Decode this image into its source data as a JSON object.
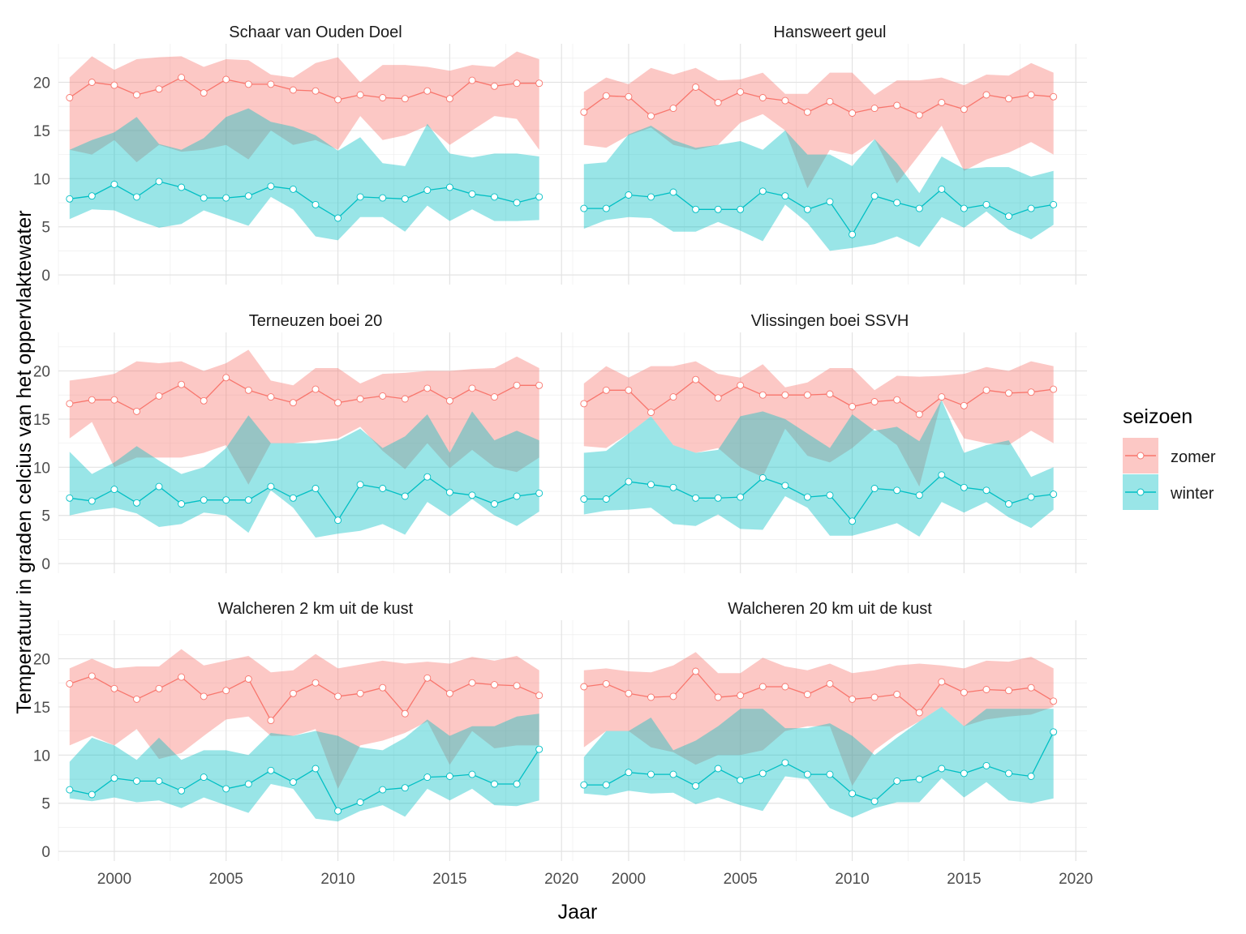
{
  "chart_data": {
    "type": "line",
    "xlabel": "Jaar",
    "ylabel": "Temperatuur in graden celcius van het oppervlaktewater",
    "xlim": [
      1997.5,
      2020.5
    ],
    "ylim": [
      -1,
      24
    ],
    "x_ticks": [
      2000,
      2005,
      2010,
      2015,
      2020
    ],
    "y_ticks": [
      0,
      5,
      10,
      15,
      20
    ],
    "grid": true,
    "legend": {
      "title": "seizoen",
      "position": "right",
      "entries": [
        {
          "label": "zomer",
          "color": "#F8766D",
          "fill": "#F8766D"
        },
        {
          "label": "winter",
          "color": "#00BFC4",
          "fill": "#00BFC4"
        }
      ]
    },
    "x": [
      1998,
      1999,
      2000,
      2001,
      2002,
      2003,
      2004,
      2005,
      2006,
      2007,
      2008,
      2009,
      2010,
      2011,
      2012,
      2013,
      2014,
      2015,
      2016,
      2017,
      2018,
      2019
    ],
    "panels": [
      {
        "title": "Schaar van Ouden Doel",
        "zomer": {
          "mean": [
            18.4,
            20.0,
            19.7,
            18.7,
            19.3,
            20.5,
            18.9,
            20.3,
            19.8,
            19.8,
            19.2,
            19.1,
            18.2,
            18.7,
            18.4,
            18.3,
            19.1,
            18.3,
            20.2,
            19.6,
            19.9,
            19.9
          ],
          "lower": [
            13.0,
            12.5,
            14.0,
            11.7,
            13.5,
            12.8,
            13.0,
            13.5,
            12.0,
            15.0,
            13.5,
            14.0,
            13.0,
            16.5,
            14.0,
            14.5,
            15.5,
            13.5,
            15.0,
            16.5,
            16.2,
            13.0
          ],
          "upper": [
            20.5,
            22.7,
            21.3,
            22.4,
            22.6,
            22.7,
            21.6,
            22.4,
            22.3,
            20.8,
            20.5,
            22.0,
            22.6,
            20.0,
            21.8,
            21.8,
            21.6,
            21.2,
            21.8,
            21.6,
            23.2,
            22.4
          ]
        },
        "winter": {
          "mean": [
            7.9,
            8.2,
            9.4,
            8.1,
            9.7,
            9.1,
            8.0,
            8.0,
            8.2,
            9.2,
            8.9,
            7.3,
            5.9,
            8.1,
            8.0,
            7.9,
            8.8,
            9.1,
            8.4,
            8.1,
            7.5,
            8.1
          ],
          "lower": [
            5.8,
            6.8,
            6.7,
            5.7,
            4.9,
            5.3,
            6.7,
            5.9,
            5.1,
            8.1,
            6.8,
            4.0,
            3.6,
            6.0,
            6.0,
            4.5,
            7.2,
            5.6,
            6.8,
            5.6,
            5.6,
            5.7
          ],
          "upper": [
            13.0,
            14.0,
            14.8,
            16.4,
            13.6,
            13.0,
            14.2,
            16.4,
            17.3,
            15.9,
            15.4,
            14.5,
            12.9,
            14.3,
            11.6,
            11.3,
            15.7,
            12.6,
            12.2,
            12.6,
            12.6,
            12.3
          ]
        }
      },
      {
        "title": "Hansweert geul",
        "zomer": {
          "mean": [
            16.9,
            18.6,
            18.5,
            16.5,
            17.3,
            19.5,
            17.9,
            19.0,
            18.4,
            18.1,
            16.9,
            18.0,
            16.8,
            17.3,
            17.6,
            16.6,
            17.9,
            17.2,
            18.7,
            18.3,
            18.7,
            18.5
          ],
          "lower": [
            13.5,
            13.2,
            14.5,
            15.3,
            13.5,
            13.0,
            13.5,
            15.8,
            16.7,
            15.0,
            9.0,
            13.0,
            12.5,
            14.1,
            9.5,
            12.5,
            15.5,
            10.8,
            12.0,
            12.7,
            13.8,
            12.5
          ],
          "upper": [
            19.0,
            20.5,
            19.8,
            21.5,
            20.8,
            21.5,
            20.2,
            20.3,
            21.0,
            18.8,
            18.8,
            21.0,
            21.0,
            18.7,
            20.2,
            20.2,
            20.5,
            19.7,
            20.8,
            20.7,
            22.0,
            21.0
          ]
        },
        "winter": {
          "mean": [
            6.9,
            6.9,
            8.3,
            8.1,
            8.6,
            6.8,
            6.8,
            6.8,
            8.7,
            8.2,
            6.8,
            7.6,
            4.2,
            8.2,
            7.5,
            6.9,
            8.9,
            6.9,
            7.3,
            6.1,
            6.9,
            7.3
          ],
          "lower": [
            4.8,
            5.7,
            6.0,
            5.9,
            4.5,
            4.5,
            5.5,
            4.6,
            3.5,
            7.3,
            5.4,
            2.5,
            2.8,
            3.2,
            4.0,
            2.9,
            6.0,
            4.9,
            6.6,
            4.7,
            3.7,
            5.2
          ],
          "upper": [
            11.5,
            11.7,
            14.6,
            15.5,
            14.0,
            13.2,
            13.5,
            13.9,
            13.0,
            15.0,
            12.5,
            12.5,
            11.3,
            14.1,
            11.6,
            8.5,
            12.3,
            11.0,
            11.2,
            11.2,
            10.2,
            10.8
          ]
        }
      },
      {
        "title": "Terneuzen boei 20",
        "zomer": {
          "mean": [
            16.6,
            17.0,
            17.0,
            15.8,
            17.4,
            18.6,
            16.9,
            19.3,
            18.0,
            17.3,
            16.7,
            18.1,
            16.7,
            17.1,
            17.4,
            17.1,
            18.2,
            16.9,
            18.2,
            17.3,
            18.5,
            18.5
          ],
          "lower": [
            13.0,
            14.7,
            10.0,
            11.0,
            11.0,
            11.0,
            11.5,
            12.3,
            8.2,
            12.5,
            12.5,
            12.8,
            13.0,
            14.2,
            11.7,
            9.8,
            12.5,
            9.9,
            11.8,
            10.0,
            9.5,
            11.0
          ],
          "upper": [
            19.0,
            19.3,
            19.7,
            21.0,
            20.8,
            21.0,
            20.0,
            20.8,
            22.2,
            19.0,
            18.5,
            20.3,
            20.3,
            18.7,
            19.7,
            19.8,
            20.0,
            20.0,
            20.2,
            20.3,
            21.5,
            20.3
          ]
        },
        "winter": {
          "mean": [
            6.8,
            6.5,
            7.7,
            6.3,
            8.0,
            6.2,
            6.6,
            6.6,
            6.6,
            8.0,
            6.8,
            7.8,
            4.5,
            8.2,
            7.8,
            7.0,
            9.0,
            7.4,
            7.1,
            6.2,
            7.0,
            7.3
          ],
          "lower": [
            5.0,
            5.5,
            5.8,
            5.2,
            3.8,
            4.1,
            5.3,
            5.0,
            3.2,
            7.6,
            5.8,
            2.7,
            3.1,
            3.4,
            4.1,
            3.0,
            6.4,
            4.9,
            6.7,
            5.0,
            3.9,
            5.4
          ],
          "upper": [
            11.6,
            9.3,
            10.5,
            12.2,
            10.7,
            9.3,
            10.0,
            12.0,
            15.4,
            12.5,
            12.5,
            12.5,
            12.8,
            14.0,
            12.0,
            13.2,
            15.5,
            11.5,
            15.8,
            12.8,
            13.8,
            12.8
          ]
        }
      },
      {
        "title": "Vlissingen boei SSVH",
        "zomer": {
          "mean": [
            16.6,
            18.0,
            18.0,
            15.7,
            17.3,
            19.1,
            17.2,
            18.5,
            17.5,
            17.5,
            17.5,
            17.6,
            16.3,
            16.8,
            17.0,
            15.5,
            17.3,
            16.4,
            18.0,
            17.7,
            17.8,
            18.1
          ],
          "lower": [
            12.2,
            12.0,
            13.5,
            15.3,
            12.3,
            11.5,
            12.0,
            10.0,
            9.0,
            14.0,
            11.2,
            10.5,
            12.0,
            14.0,
            12.3,
            8.0,
            17.0,
            13.0,
            12.5,
            12.3,
            13.8,
            12.5
          ],
          "upper": [
            18.7,
            20.5,
            19.3,
            20.5,
            20.5,
            21.0,
            19.7,
            19.3,
            20.7,
            18.3,
            18.8,
            20.3,
            20.3,
            18.0,
            19.5,
            19.4,
            19.5,
            19.7,
            20.4,
            20.0,
            21.0,
            20.5
          ]
        },
        "winter": {
          "mean": [
            6.7,
            6.7,
            8.5,
            8.2,
            7.9,
            6.8,
            6.8,
            6.9,
            8.9,
            8.1,
            6.9,
            7.1,
            4.4,
            7.8,
            7.6,
            7.1,
            9.2,
            7.9,
            7.6,
            6.2,
            6.9,
            7.2
          ],
          "lower": [
            5.1,
            5.5,
            5.6,
            5.8,
            4.1,
            3.9,
            5.1,
            3.6,
            3.5,
            7.0,
            5.8,
            2.9,
            2.9,
            3.5,
            4.2,
            2.8,
            6.4,
            5.3,
            6.4,
            4.8,
            3.7,
            5.6
          ],
          "upper": [
            11.5,
            11.7,
            13.5,
            15.3,
            12.3,
            11.5,
            11.8,
            15.3,
            15.8,
            15.0,
            13.5,
            12.0,
            15.5,
            13.8,
            14.2,
            12.7,
            17.0,
            11.5,
            12.3,
            12.8,
            9.0,
            10.0
          ]
        }
      },
      {
        "title": "Walcheren 2 km uit de kust",
        "zomer": {
          "mean": [
            17.4,
            18.2,
            16.9,
            15.8,
            16.9,
            18.1,
            16.1,
            16.7,
            17.9,
            13.6,
            16.4,
            17.5,
            16.1,
            16.4,
            17.0,
            14.3,
            18.0,
            16.4,
            17.5,
            17.3,
            17.2,
            16.2
          ],
          "lower": [
            11.0,
            12.0,
            11.0,
            12.7,
            9.6,
            10.2,
            12.0,
            13.7,
            14.0,
            12.0,
            12.0,
            12.7,
            6.5,
            11.0,
            11.5,
            12.3,
            13.5,
            9.0,
            12.5,
            10.7,
            11.0,
            11.0
          ],
          "upper": [
            19.0,
            20.0,
            19.0,
            19.2,
            19.2,
            21.0,
            19.3,
            19.8,
            20.3,
            18.6,
            18.8,
            20.5,
            19.0,
            19.4,
            19.8,
            19.5,
            19.7,
            19.5,
            20.2,
            19.8,
            20.3,
            18.8
          ]
        },
        "winter": {
          "mean": [
            6.4,
            5.9,
            7.6,
            7.3,
            7.3,
            6.3,
            7.7,
            6.5,
            7.0,
            8.4,
            7.2,
            8.6,
            4.2,
            5.1,
            6.4,
            6.6,
            7.7,
            7.8,
            8.0,
            7.0,
            7.0,
            10.6
          ],
          "lower": [
            5.5,
            5.2,
            5.6,
            5.1,
            5.3,
            4.5,
            5.6,
            4.8,
            4.0,
            7.0,
            6.5,
            3.4,
            3.1,
            4.2,
            4.8,
            3.6,
            6.5,
            5.3,
            6.5,
            4.8,
            4.7,
            5.3
          ],
          "upper": [
            9.3,
            11.8,
            11.0,
            9.5,
            11.8,
            9.5,
            10.5,
            10.5,
            10.0,
            12.3,
            12.0,
            12.5,
            12.0,
            10.8,
            10.5,
            11.8,
            13.7,
            12.0,
            13.0,
            13.0,
            14.0,
            14.3
          ]
        }
      },
      {
        "title": "Walcheren 20 km uit de kust",
        "zomer": {
          "mean": [
            17.1,
            17.4,
            16.4,
            16.0,
            16.1,
            18.7,
            16.0,
            16.2,
            17.1,
            17.1,
            16.3,
            17.4,
            15.8,
            16.0,
            16.3,
            14.4,
            17.6,
            16.5,
            16.8,
            16.7,
            17.0,
            15.6
          ],
          "lower": [
            10.8,
            12.5,
            12.5,
            10.8,
            10.3,
            9.0,
            10.0,
            10.0,
            10.5,
            12.5,
            13.0,
            13.0,
            6.8,
            10.5,
            12.2,
            13.5,
            15.0,
            13.0,
            13.7,
            14.0,
            14.2,
            15.0
          ],
          "upper": [
            18.8,
            19.0,
            18.7,
            18.6,
            19.3,
            20.7,
            18.5,
            18.5,
            20.1,
            19.2,
            18.8,
            19.5,
            18.5,
            18.8,
            19.3,
            19.5,
            19.3,
            19.0,
            19.8,
            19.7,
            20.2,
            19.0
          ]
        },
        "winter": {
          "mean": [
            6.9,
            6.9,
            8.2,
            8.0,
            8.0,
            6.8,
            8.6,
            7.4,
            8.1,
            9.2,
            8.0,
            8.0,
            6.0,
            5.2,
            7.3,
            7.5,
            8.6,
            8.1,
            8.9,
            8.1,
            7.8,
            12.4
          ],
          "lower": [
            6.0,
            5.8,
            6.3,
            6.0,
            6.1,
            4.9,
            5.6,
            4.8,
            4.2,
            7.8,
            7.5,
            4.5,
            3.5,
            4.5,
            5.1,
            5.1,
            7.6,
            5.6,
            7.2,
            5.3,
            5.0,
            5.5
          ],
          "upper": [
            9.8,
            12.5,
            12.5,
            13.9,
            10.5,
            11.5,
            13.0,
            14.8,
            14.8,
            12.8,
            12.8,
            13.3,
            12.0,
            10.0,
            11.8,
            13.5,
            15.0,
            13.0,
            14.8,
            14.8,
            14.8,
            14.8
          ]
        }
      }
    ]
  }
}
